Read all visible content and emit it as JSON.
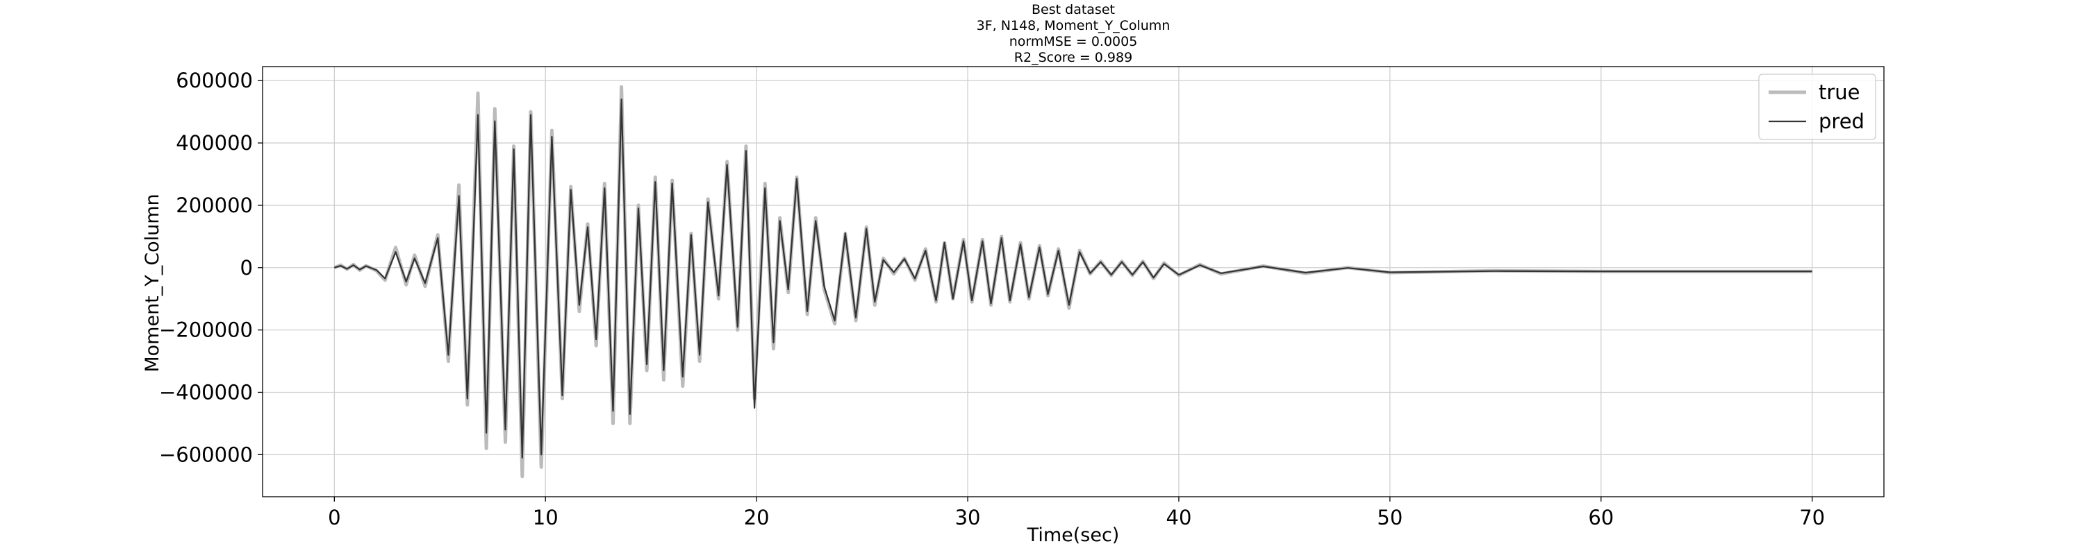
{
  "chart_data": {
    "type": "line",
    "title_lines": [
      "Best dataset",
      "3F, N148, Moment_Y_Column",
      "normMSE = 0.0005",
      "R2_Score = 0.989"
    ],
    "xlabel": "Time(sec)",
    "ylabel": "Moment_Y_Column",
    "xlim": [
      -3.4,
      73.4
    ],
    "ylim": [
      -735000,
      645000
    ],
    "xticks": [
      0,
      10,
      20,
      30,
      40,
      50,
      60,
      70
    ],
    "xtick_labels": [
      "0",
      "10",
      "20",
      "30",
      "40",
      "50",
      "60",
      "70"
    ],
    "yticks": [
      600000,
      400000,
      200000,
      0,
      -200000,
      -400000,
      -600000
    ],
    "ytick_labels": [
      "600000",
      "400000",
      "200000",
      "0",
      "−200000",
      "−400000",
      "−600000"
    ],
    "grid": true,
    "legend_position": "top-right",
    "series": [
      {
        "name": "true",
        "color": "#bbbbbb",
        "points": [
          [
            0,
            0
          ],
          [
            0.3,
            8000
          ],
          [
            0.6,
            -5000
          ],
          [
            0.9,
            10000
          ],
          [
            1.2,
            -8000
          ],
          [
            1.5,
            6000
          ],
          [
            2,
            -10000
          ],
          [
            2.4,
            -40000
          ],
          [
            2.9,
            65000
          ],
          [
            3.4,
            -55000
          ],
          [
            3.8,
            40000
          ],
          [
            4.3,
            -60000
          ],
          [
            4.9,
            105000
          ],
          [
            5.4,
            -300000
          ],
          [
            5.9,
            265000
          ],
          [
            6.3,
            -440000
          ],
          [
            6.8,
            560000
          ],
          [
            7.2,
            -580000
          ],
          [
            7.6,
            510000
          ],
          [
            8.1,
            -560000
          ],
          [
            8.5,
            390000
          ],
          [
            8.9,
            -670000
          ],
          [
            9.3,
            500000
          ],
          [
            9.8,
            -640000
          ],
          [
            10.3,
            440000
          ],
          [
            10.8,
            -420000
          ],
          [
            11.2,
            260000
          ],
          [
            11.6,
            -140000
          ],
          [
            12,
            140000
          ],
          [
            12.4,
            -250000
          ],
          [
            12.8,
            270000
          ],
          [
            13.2,
            -500000
          ],
          [
            13.6,
            580000
          ],
          [
            14,
            -500000
          ],
          [
            14.4,
            200000
          ],
          [
            14.8,
            -330000
          ],
          [
            15.2,
            290000
          ],
          [
            15.6,
            -360000
          ],
          [
            16,
            280000
          ],
          [
            16.5,
            -380000
          ],
          [
            16.9,
            110000
          ],
          [
            17.3,
            -300000
          ],
          [
            17.7,
            220000
          ],
          [
            18.2,
            -100000
          ],
          [
            18.6,
            340000
          ],
          [
            19.1,
            -200000
          ],
          [
            19.5,
            390000
          ],
          [
            19.9,
            -420000
          ],
          [
            20.4,
            270000
          ],
          [
            20.8,
            -260000
          ],
          [
            21.1,
            160000
          ],
          [
            21.5,
            -80000
          ],
          [
            21.9,
            290000
          ],
          [
            22.4,
            -150000
          ],
          [
            22.8,
            160000
          ],
          [
            23.2,
            -70000
          ],
          [
            23.7,
            -180000
          ],
          [
            24.2,
            110000
          ],
          [
            24.7,
            -170000
          ],
          [
            25.2,
            130000
          ],
          [
            25.6,
            -120000
          ],
          [
            26,
            30000
          ],
          [
            26.5,
            -20000
          ],
          [
            27,
            30000
          ],
          [
            27.5,
            -40000
          ],
          [
            28,
            60000
          ],
          [
            28.5,
            -110000
          ],
          [
            28.9,
            80000
          ],
          [
            29.3,
            -100000
          ],
          [
            29.8,
            90000
          ],
          [
            30.2,
            -110000
          ],
          [
            30.7,
            90000
          ],
          [
            31.1,
            -120000
          ],
          [
            31.6,
            100000
          ],
          [
            32,
            -110000
          ],
          [
            32.5,
            80000
          ],
          [
            32.9,
            -100000
          ],
          [
            33.4,
            70000
          ],
          [
            33.8,
            -90000
          ],
          [
            34.3,
            60000
          ],
          [
            34.8,
            -130000
          ],
          [
            35.3,
            55000
          ],
          [
            35.8,
            -20000
          ],
          [
            36.3,
            20000
          ],
          [
            36.8,
            -25000
          ],
          [
            37.3,
            20000
          ],
          [
            37.8,
            -25000
          ],
          [
            38.3,
            20000
          ],
          [
            38.8,
            -35000
          ],
          [
            39.3,
            15000
          ],
          [
            40,
            -25000
          ],
          [
            41,
            10000
          ],
          [
            42,
            -20000
          ],
          [
            44,
            5000
          ],
          [
            46,
            -18000
          ],
          [
            48,
            0
          ],
          [
            50,
            -16000
          ],
          [
            55,
            -10000
          ],
          [
            60,
            -12000
          ],
          [
            65,
            -12000
          ],
          [
            70,
            -12000
          ]
        ]
      },
      {
        "name": "pred",
        "color": "#333333",
        "points": [
          [
            0,
            0
          ],
          [
            0.3,
            6000
          ],
          [
            0.6,
            -4000
          ],
          [
            0.9,
            8000
          ],
          [
            1.2,
            -6000
          ],
          [
            1.5,
            5000
          ],
          [
            2,
            -8000
          ],
          [
            2.4,
            -35000
          ],
          [
            2.9,
            50000
          ],
          [
            3.4,
            -45000
          ],
          [
            3.8,
            30000
          ],
          [
            4.3,
            -50000
          ],
          [
            4.9,
            95000
          ],
          [
            5.4,
            -280000
          ],
          [
            5.9,
            230000
          ],
          [
            6.3,
            -420000
          ],
          [
            6.8,
            490000
          ],
          [
            7.2,
            -530000
          ],
          [
            7.6,
            470000
          ],
          [
            8.1,
            -520000
          ],
          [
            8.5,
            380000
          ],
          [
            8.9,
            -610000
          ],
          [
            9.3,
            490000
          ],
          [
            9.8,
            -600000
          ],
          [
            10.3,
            420000
          ],
          [
            10.8,
            -410000
          ],
          [
            11.2,
            250000
          ],
          [
            11.6,
            -120000
          ],
          [
            12,
            130000
          ],
          [
            12.4,
            -230000
          ],
          [
            12.8,
            255000
          ],
          [
            13.2,
            -460000
          ],
          [
            13.6,
            540000
          ],
          [
            14,
            -470000
          ],
          [
            14.4,
            190000
          ],
          [
            14.8,
            -310000
          ],
          [
            15.2,
            275000
          ],
          [
            15.6,
            -330000
          ],
          [
            16,
            270000
          ],
          [
            16.5,
            -350000
          ],
          [
            16.9,
            105000
          ],
          [
            17.3,
            -280000
          ],
          [
            17.7,
            210000
          ],
          [
            18.2,
            -90000
          ],
          [
            18.6,
            330000
          ],
          [
            19.1,
            -190000
          ],
          [
            19.5,
            375000
          ],
          [
            19.9,
            -450000
          ],
          [
            20.4,
            255000
          ],
          [
            20.8,
            -240000
          ],
          [
            21.1,
            150000
          ],
          [
            21.5,
            -70000
          ],
          [
            21.9,
            285000
          ],
          [
            22.4,
            -140000
          ],
          [
            22.8,
            150000
          ],
          [
            23.2,
            -60000
          ],
          [
            23.7,
            -170000
          ],
          [
            24.2,
            110000
          ],
          [
            24.7,
            -160000
          ],
          [
            25.2,
            125000
          ],
          [
            25.6,
            -110000
          ],
          [
            26,
            25000
          ],
          [
            26.5,
            -15000
          ],
          [
            27,
            28000
          ],
          [
            27.5,
            -35000
          ],
          [
            28,
            55000
          ],
          [
            28.5,
            -105000
          ],
          [
            28.9,
            80000
          ],
          [
            29.3,
            -100000
          ],
          [
            29.8,
            85000
          ],
          [
            30.2,
            -105000
          ],
          [
            30.7,
            85000
          ],
          [
            31.1,
            -115000
          ],
          [
            31.6,
            95000
          ],
          [
            32,
            -105000
          ],
          [
            32.5,
            75000
          ],
          [
            32.9,
            -95000
          ],
          [
            33.4,
            65000
          ],
          [
            33.8,
            -85000
          ],
          [
            34.3,
            55000
          ],
          [
            34.8,
            -120000
          ],
          [
            35.3,
            50000
          ],
          [
            35.8,
            -18000
          ],
          [
            36.3,
            18000
          ],
          [
            36.8,
            -23000
          ],
          [
            37.3,
            18000
          ],
          [
            37.8,
            -23000
          ],
          [
            38.3,
            18000
          ],
          [
            38.8,
            -32000
          ],
          [
            39.3,
            12000
          ],
          [
            40,
            -23000
          ],
          [
            41,
            8000
          ],
          [
            42,
            -18000
          ],
          [
            44,
            4000
          ],
          [
            46,
            -16000
          ],
          [
            48,
            -1000
          ],
          [
            50,
            -15000
          ],
          [
            55,
            -11000
          ],
          [
            60,
            -12000
          ],
          [
            65,
            -12000
          ],
          [
            70,
            -12000
          ]
        ]
      }
    ]
  }
}
